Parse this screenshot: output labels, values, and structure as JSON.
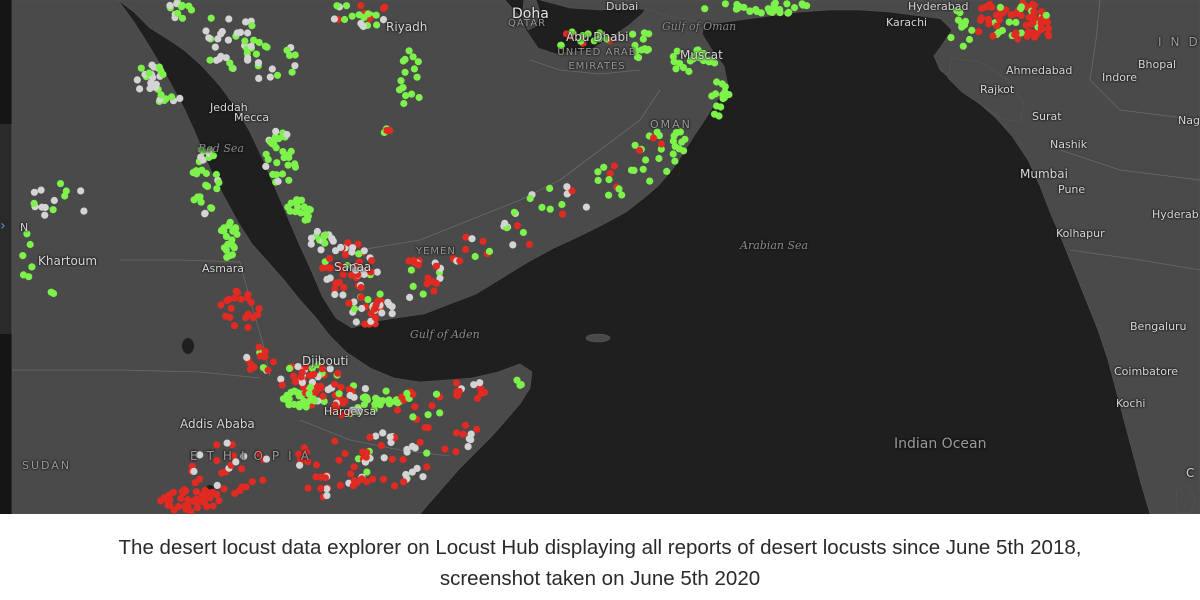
{
  "colors": {
    "land": "#4a4a4a",
    "water": "#1f1f1f",
    "border": "#5e5e5e",
    "point_green": "#7cf24a",
    "point_red": "#e02a22",
    "point_white": "#d4d4d4"
  },
  "map": {
    "labels": {
      "riyadh": "Riyadh",
      "doha": "Doha",
      "qatar": "QATAR",
      "dubai": "Dubai",
      "abu_dhabi": "Abu Dhabi",
      "uae": "UNITED ARAB EMIRATES",
      "gulf_of_oman": "Gulf of Oman",
      "muscat": "Muscat",
      "oman": "OMAN",
      "jeddah": "Jeddah",
      "mecca": "Mecca",
      "red_sea": "Red Sea",
      "khartoum": "Khartoum",
      "asmara": "Asmara",
      "sanaa": "Sanaa",
      "yemen": "YEMEN",
      "gulf_of_aden": "Gulf of Aden",
      "djibouti": "Djibouti",
      "hargeysa": "Hargeysa",
      "addis_ababa": "Addis Ababa",
      "ethiopia": "ETHIOPIA",
      "sudan": "SUDAN",
      "arabian_sea": "Arabian Sea",
      "indian_ocean": "Indian Ocean",
      "hyderabad_pk": "Hyderabad",
      "karachi": "Karachi",
      "india": "IND",
      "ahmedabad": "Ahmedabad",
      "bhopal": "Bhopal",
      "indore": "Indore",
      "rajkot": "Rajkot",
      "surat": "Surat",
      "nashik": "Nashik",
      "nag": "Nag",
      "mumbai": "Mumbai",
      "pune": "Pune",
      "hyderabad_in": "Hyderab",
      "kolhapur": "Kolhapur",
      "bengaluru": "Bengaluru",
      "coimbatore": "Coimbatore",
      "kochi": "Kochi",
      "edge_c": "C",
      "edge_n": "N"
    }
  },
  "caption": {
    "line1": "The desert locust data explorer on Locust Hub displaying all reports of desert locusts since June 5th 2018,",
    "line2": "screenshot taken on June 5th 2020"
  }
}
